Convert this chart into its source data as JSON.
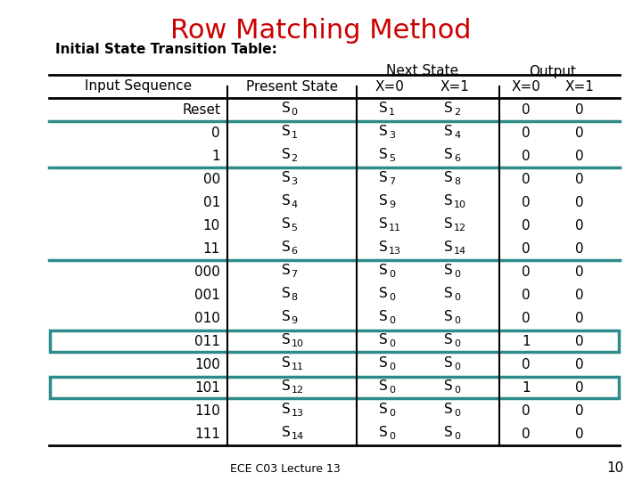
{
  "title": "Row Matching Method",
  "subtitle": "Initial State Transition Table:",
  "title_color": "#cc0000",
  "subtitle_color": "#000000",
  "teal_color": "#2e8b8b",
  "rows": [
    {
      "seq": "Reset",
      "ps": [
        "S",
        "0"
      ],
      "ns0": [
        "S",
        "1"
      ],
      "ns1": [
        "S",
        "2"
      ],
      "out0": "0",
      "out1": "0",
      "highlight": false,
      "sep_after": true
    },
    {
      "seq": "0",
      "ps": [
        "S",
        "1"
      ],
      "ns0": [
        "S",
        "3"
      ],
      "ns1": [
        "S",
        "4"
      ],
      "out0": "0",
      "out1": "0",
      "highlight": false,
      "sep_after": false
    },
    {
      "seq": "1",
      "ps": [
        "S",
        "2"
      ],
      "ns0": [
        "S",
        "5"
      ],
      "ns1": [
        "S",
        "6"
      ],
      "out0": "0",
      "out1": "0",
      "highlight": false,
      "sep_after": true
    },
    {
      "seq": "00",
      "ps": [
        "S",
        "3"
      ],
      "ns0": [
        "S",
        "7"
      ],
      "ns1": [
        "S",
        "8"
      ],
      "out0": "0",
      "out1": "0",
      "highlight": false,
      "sep_after": false
    },
    {
      "seq": "01",
      "ps": [
        "S",
        "4"
      ],
      "ns0": [
        "S",
        "9"
      ],
      "ns1": [
        "S",
        "10"
      ],
      "out0": "0",
      "out1": "0",
      "highlight": false,
      "sep_after": false
    },
    {
      "seq": "10",
      "ps": [
        "S",
        "5"
      ],
      "ns0": [
        "S",
        "11"
      ],
      "ns1": [
        "S",
        "12"
      ],
      "out0": "0",
      "out1": "0",
      "highlight": false,
      "sep_after": false
    },
    {
      "seq": "11",
      "ps": [
        "S",
        "6"
      ],
      "ns0": [
        "S",
        "13"
      ],
      "ns1": [
        "S",
        "14"
      ],
      "out0": "0",
      "out1": "0",
      "highlight": false,
      "sep_after": true
    },
    {
      "seq": "000",
      "ps": [
        "S",
        "7"
      ],
      "ns0": [
        "S",
        "0"
      ],
      "ns1": [
        "S",
        "0"
      ],
      "out0": "0",
      "out1": "0",
      "highlight": false,
      "sep_after": false
    },
    {
      "seq": "001",
      "ps": [
        "S",
        "8"
      ],
      "ns0": [
        "S",
        "0"
      ],
      "ns1": [
        "S",
        "0"
      ],
      "out0": "0",
      "out1": "0",
      "highlight": false,
      "sep_after": false
    },
    {
      "seq": "010",
      "ps": [
        "S",
        "9"
      ],
      "ns0": [
        "S",
        "0"
      ],
      "ns1": [
        "S",
        "0"
      ],
      "out0": "0",
      "out1": "0",
      "highlight": false,
      "sep_after": false
    },
    {
      "seq": "011",
      "ps": [
        "S",
        "10"
      ],
      "ns0": [
        "S",
        "0"
      ],
      "ns1": [
        "S",
        "0"
      ],
      "out0": "1",
      "out1": "0",
      "highlight": true,
      "sep_after": false
    },
    {
      "seq": "100",
      "ps": [
        "S",
        "11"
      ],
      "ns0": [
        "S",
        "0"
      ],
      "ns1": [
        "S",
        "0"
      ],
      "out0": "0",
      "out1": "0",
      "highlight": false,
      "sep_after": false
    },
    {
      "seq": "101",
      "ps": [
        "S",
        "12"
      ],
      "ns0": [
        "S",
        "0"
      ],
      "ns1": [
        "S",
        "0"
      ],
      "out0": "1",
      "out1": "0",
      "highlight": true,
      "sep_after": false
    },
    {
      "seq": "110",
      "ps": [
        "S",
        "13"
      ],
      "ns0": [
        "S",
        "0"
      ],
      "ns1": [
        "S",
        "0"
      ],
      "out0": "0",
      "out1": "0",
      "highlight": false,
      "sep_after": false
    },
    {
      "seq": "111",
      "ps": [
        "S",
        "14"
      ],
      "ns0": [
        "S",
        "0"
      ],
      "ns1": [
        "S",
        "0"
      ],
      "out0": "0",
      "out1": "0",
      "highlight": false,
      "sep_after": false
    }
  ],
  "footer": "ECE C03 Lecture 13",
  "page_num": "10",
  "background_color": "#ffffff",
  "fig_width": 7.2,
  "fig_height": 5.4,
  "dpi": 100
}
